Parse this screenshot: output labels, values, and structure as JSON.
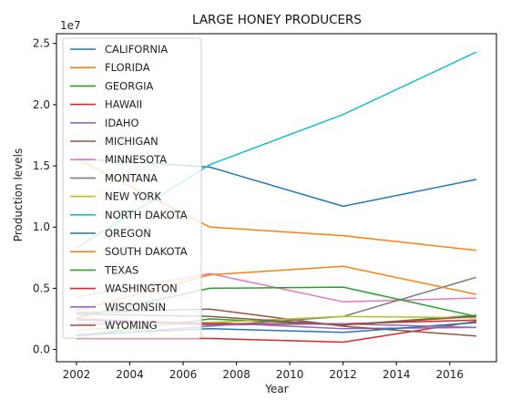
{
  "chart_data": {
    "type": "line",
    "title": "LARGE HONEY PRODUCERS",
    "xlabel": "Year",
    "ylabel": "Production levels",
    "y_offset_label": "1e7",
    "x": [
      2002,
      2007,
      2012,
      2017
    ],
    "xlim": [
      2001.25,
      2017.75
    ],
    "ylim": [
      -0.1,
      2.58
    ],
    "x_ticks": [
      2002,
      2004,
      2006,
      2008,
      2010,
      2012,
      2014,
      2016
    ],
    "y_ticks": [
      0.0,
      0.5,
      1.0,
      1.5,
      2.0,
      2.5
    ],
    "y_tick_labels": [
      "0.0",
      "0.5",
      "1.0",
      "1.5",
      "2.0",
      "2.5"
    ],
    "legend_position": "upper-left",
    "grid": false,
    "series": [
      {
        "name": "CALIFORNIA",
        "color": "#1f77b4",
        "values": [
          1.56,
          1.49,
          1.17,
          1.39
        ]
      },
      {
        "name": "FLORIDA",
        "color": "#ff7f0e",
        "values": [
          1.56,
          1.0,
          0.93,
          0.81
        ]
      },
      {
        "name": "GEORGIA",
        "color": "#2ca02c",
        "values": [
          0.11,
          0.25,
          0.2,
          0.28
        ]
      },
      {
        "name": "HAWAII",
        "color": "#d62728",
        "values": [
          0.09,
          0.09,
          0.06,
          0.23
        ]
      },
      {
        "name": "IDAHO",
        "color": "#9467bd",
        "values": [
          0.21,
          0.22,
          0.17,
          0.18
        ]
      },
      {
        "name": "MICHIGAN",
        "color": "#8c564b",
        "values": [
          0.3,
          0.33,
          0.19,
          0.11
        ]
      },
      {
        "name": "MINNESOTA",
        "color": "#e377c2",
        "values": [
          0.43,
          0.62,
          0.39,
          0.42
        ]
      },
      {
        "name": "MONTANA",
        "color": "#7f7f7f",
        "values": [
          0.11,
          0.19,
          0.27,
          0.59
        ]
      },
      {
        "name": "NEW YORK",
        "color": "#bcbd22",
        "values": [
          0.16,
          0.22,
          0.27,
          0.26
        ]
      },
      {
        "name": "NORTH DAKOTA",
        "color": "#17becf",
        "values": [
          0.83,
          1.51,
          1.92,
          2.43
        ]
      },
      {
        "name": "OREGON",
        "color": "#1f77b4",
        "values": [
          0.12,
          0.17,
          0.14,
          0.22
        ]
      },
      {
        "name": "SOUTH DAKOTA",
        "color": "#ff7f0e",
        "values": [
          0.32,
          0.61,
          0.68,
          0.45
        ]
      },
      {
        "name": "TEXAS",
        "color": "#2ca02c",
        "values": [
          0.26,
          0.5,
          0.51,
          0.27
        ]
      },
      {
        "name": "WASHINGTON",
        "color": "#d62728",
        "values": [
          0.25,
          0.21,
          0.21,
          0.24
        ]
      },
      {
        "name": "WISCONSIN",
        "color": "#9467bd",
        "values": [
          0.24,
          0.2,
          0.21,
          0.18
        ]
      },
      {
        "name": "WYOMING",
        "color": "#8c564b",
        "values": [
          0.29,
          0.27,
          0.2,
          0.27
        ]
      }
    ]
  }
}
